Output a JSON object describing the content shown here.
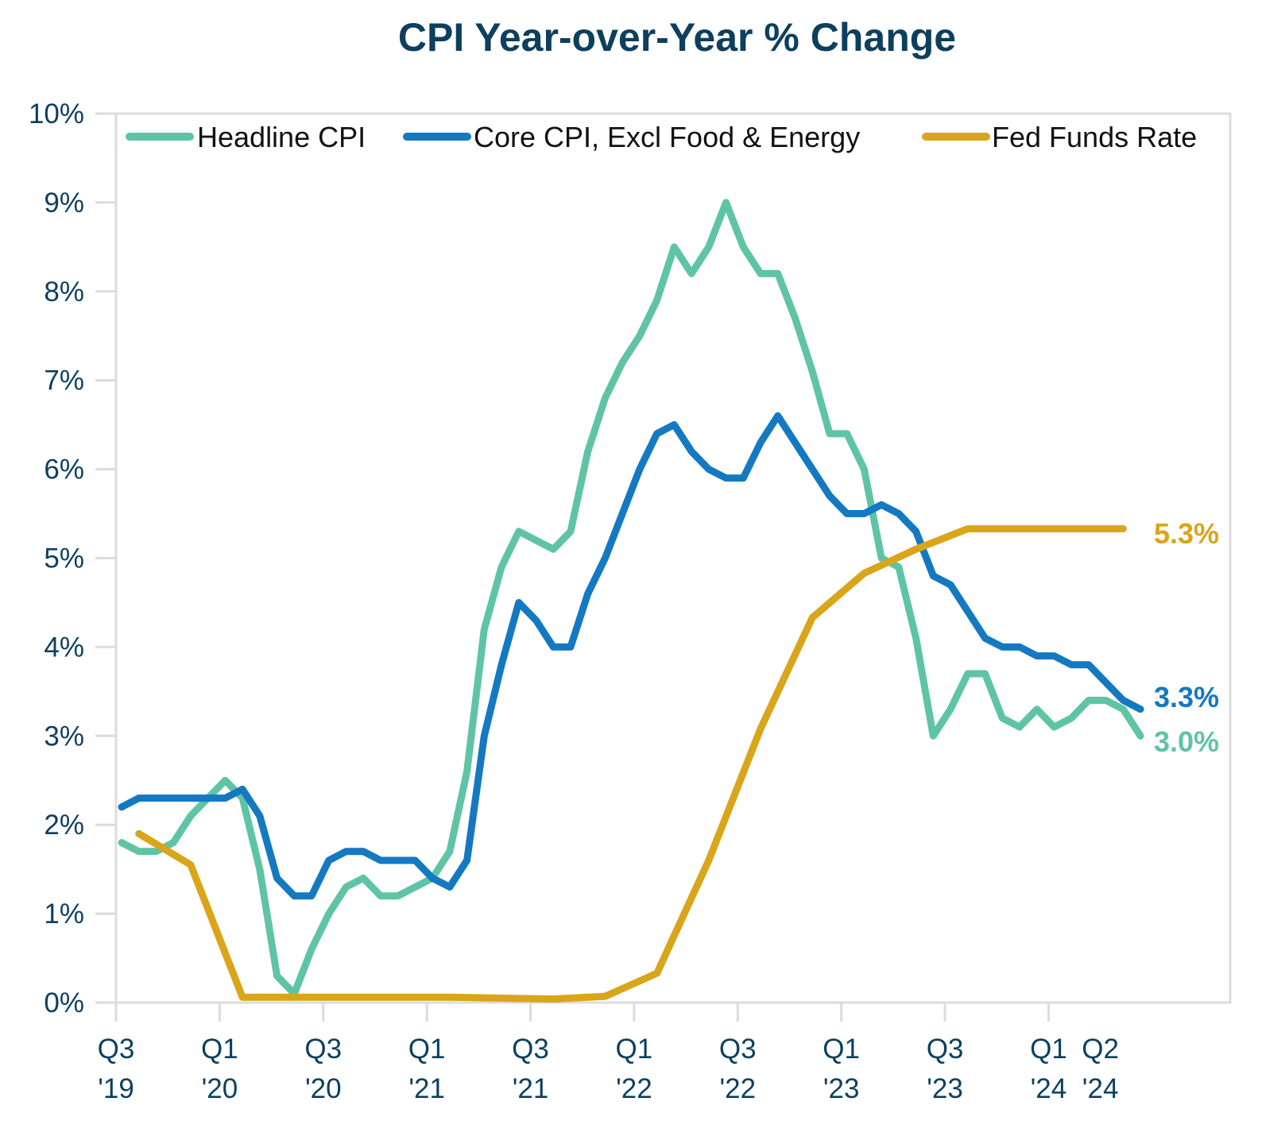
{
  "chart_data": {
    "type": "line",
    "title": "CPI Year-over-Year % Change",
    "xlabel": "",
    "ylabel": "",
    "ylim": [
      0,
      10
    ],
    "y_ticks": [
      "0%",
      "1%",
      "2%",
      "3%",
      "4%",
      "5%",
      "6%",
      "7%",
      "8%",
      "9%",
      "10%"
    ],
    "x_start": "Jul 2019",
    "x_frequency": "monthly",
    "x_months_total": 64,
    "x_ticks": [
      {
        "month_index": 0,
        "line1": "Q3",
        "line2": "'19"
      },
      {
        "month_index": 6,
        "line1": "Q1",
        "line2": "'20"
      },
      {
        "month_index": 12,
        "line1": "Q3",
        "line2": "'20"
      },
      {
        "month_index": 18,
        "line1": "Q1",
        "line2": "'21"
      },
      {
        "month_index": 24,
        "line1": "Q3",
        "line2": "'21"
      },
      {
        "month_index": 30,
        "line1": "Q1",
        "line2": "'22"
      },
      {
        "month_index": 36,
        "line1": "Q3",
        "line2": "'22"
      },
      {
        "month_index": 42,
        "line1": "Q1",
        "line2": "'23"
      },
      {
        "month_index": 48,
        "line1": "Q3",
        "line2": "'23"
      },
      {
        "month_index": 54,
        "line1": "Q1",
        "line2": "'24"
      },
      {
        "month_index": 57,
        "line1": "Q2",
        "line2": "'24",
        "no_tick": true
      }
    ],
    "grid": false,
    "legend": "top",
    "series": [
      {
        "name": "Headline CPI",
        "color": "#5fc4a6",
        "start_month_index": 0,
        "step_months": 1,
        "values": [
          1.8,
          1.7,
          1.7,
          1.8,
          2.1,
          2.3,
          2.5,
          2.3,
          1.5,
          0.3,
          0.1,
          0.6,
          1.0,
          1.3,
          1.4,
          1.2,
          1.2,
          1.3,
          1.4,
          1.7,
          2.6,
          4.2,
          4.9,
          5.3,
          5.2,
          5.1,
          5.3,
          6.2,
          6.8,
          7.2,
          7.5,
          7.9,
          8.5,
          8.2,
          8.5,
          9.0,
          8.5,
          8.2,
          8.2,
          7.7,
          7.1,
          6.4,
          6.4,
          6.0,
          5.0,
          4.9,
          4.1,
          3.0,
          3.3,
          3.7,
          3.7,
          3.2,
          3.1,
          3.3,
          3.1,
          3.2,
          3.4,
          3.4,
          3.3,
          3.0
        ],
        "end_label": "3.0%"
      },
      {
        "name": "Core CPI, Excl Food & Energy",
        "color": "#1479c1",
        "start_month_index": 0,
        "step_months": 1,
        "values": [
          2.2,
          2.3,
          2.3,
          2.3,
          2.3,
          2.3,
          2.3,
          2.4,
          2.1,
          1.4,
          1.2,
          1.2,
          1.6,
          1.7,
          1.7,
          1.6,
          1.6,
          1.6,
          1.4,
          1.3,
          1.6,
          3.0,
          3.8,
          4.5,
          4.3,
          4.0,
          4.0,
          4.6,
          5.0,
          5.5,
          6.0,
          6.4,
          6.5,
          6.2,
          6.0,
          5.9,
          5.9,
          6.3,
          6.6,
          6.3,
          6.0,
          5.7,
          5.5,
          5.5,
          5.6,
          5.5,
          5.3,
          4.8,
          4.7,
          4.4,
          4.1,
          4.0,
          4.0,
          3.9,
          3.9,
          3.8,
          3.8,
          3.6,
          3.4,
          3.3
        ],
        "end_label": "3.3%"
      },
      {
        "name": "Fed Funds Rate",
        "color": "#d9a51a",
        "start_month_index": 1,
        "step_months": 3,
        "values": [
          1.9,
          1.55,
          0.06,
          0.06,
          0.06,
          0.06,
          0.06,
          0.05,
          0.04,
          0.07,
          0.33,
          1.6,
          3.08,
          4.33,
          4.83,
          5.1,
          5.33,
          5.33,
          5.33,
          5.33
        ],
        "end_label": "5.3%"
      }
    ]
  }
}
